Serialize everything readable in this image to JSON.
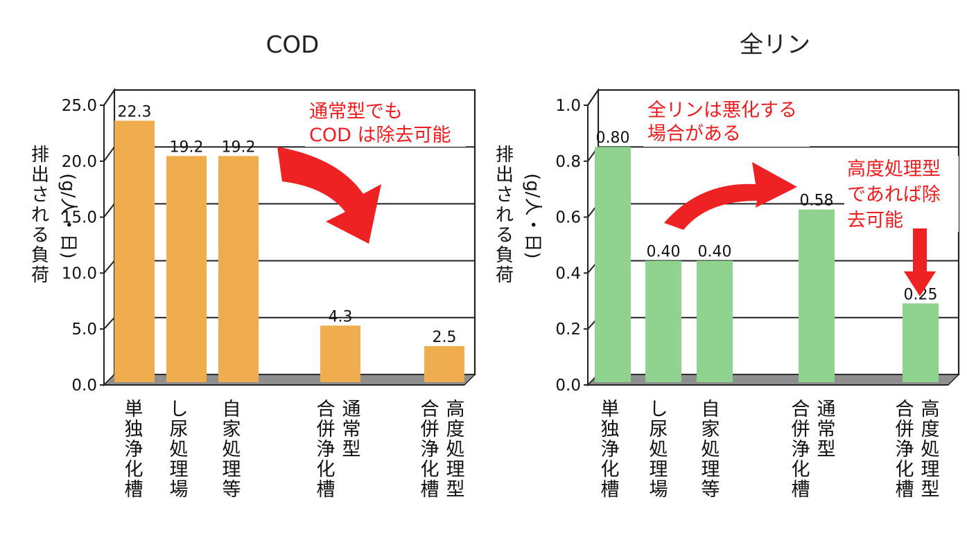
{
  "chart_data": [
    {
      "type": "bar",
      "title": "COD",
      "ylabel": "排出される負荷",
      "yunit": "(g/人・日)",
      "ylim": [
        0,
        25
      ],
      "ticks": [
        "0.0",
        "5.0",
        "10.0",
        "15.0",
        "20.0",
        "25.0"
      ],
      "categories": [
        [
          "単独浄化槽"
        ],
        [
          "し尿処理場"
        ],
        [
          "自家処理等"
        ],
        [
          "合併浄化槽",
          "通常型"
        ],
        [
          "合併浄化槽",
          "高度処理型"
        ]
      ],
      "values": [
        22.3,
        19.2,
        19.2,
        4.3,
        2.5
      ],
      "value_labels": [
        "22.3",
        "19.2",
        "19.2",
        "4.3",
        "2.5"
      ],
      "bar_color": "#f0ad4e",
      "annotations": [
        {
          "lines": [
            "通常型でも",
            "COD は除去可能"
          ],
          "color": "#ee1c1c"
        }
      ]
    },
    {
      "type": "bar",
      "title": "全リン",
      "ylabel": "排出される負荷",
      "yunit": "(g/人・日)",
      "ylim": [
        0,
        1.0
      ],
      "ticks": [
        "0.0",
        "0.2",
        "0.4",
        "0.6",
        "0.8",
        "1.0"
      ],
      "categories": [
        [
          "単独浄化槽"
        ],
        [
          "し尿処理場"
        ],
        [
          "自家処理等"
        ],
        [
          "合併浄化槽",
          "通常型"
        ],
        [
          "合併浄化槽",
          "高度処理型"
        ]
      ],
      "values": [
        0.8,
        0.4,
        0.4,
        0.58,
        0.25
      ],
      "value_labels": [
        "0.80",
        "0.40",
        "0.40",
        "0.58",
        "0.25"
      ],
      "bar_color": "#8fd38f",
      "annotations": [
        {
          "lines": [
            "全リンは悪化する",
            "場合がある"
          ],
          "color": "#ee1c1c"
        },
        {
          "lines": [
            "高度処理型",
            "であれば除",
            "去可能"
          ],
          "color": "#ee1c1c"
        }
      ]
    }
  ]
}
